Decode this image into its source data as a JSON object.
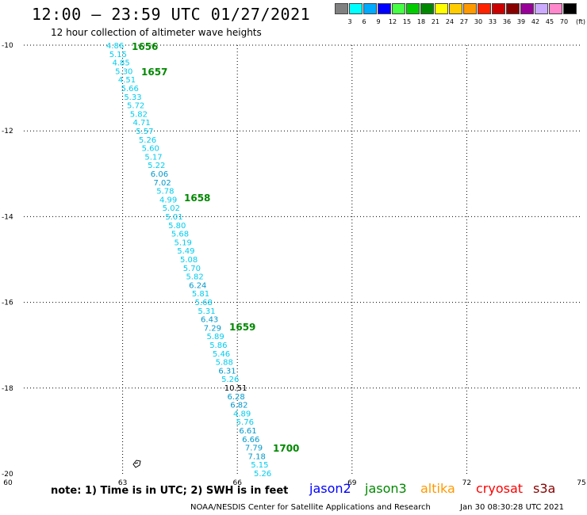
{
  "title": "12:00 – 23:59 UTC 01/27/2021",
  "subtitle": "12 hour collection of altimeter wave heights",
  "legend": {
    "unit": "(ft)",
    "items": [
      {
        "label": "3",
        "color": "#808080"
      },
      {
        "label": "6",
        "color": "#00ffff"
      },
      {
        "label": "9",
        "color": "#00aaff"
      },
      {
        "label": "12",
        "color": "#0000ff"
      },
      {
        "label": "15",
        "color": "#44ff44"
      },
      {
        "label": "18",
        "color": "#00cc00"
      },
      {
        "label": "21",
        "color": "#008800"
      },
      {
        "label": "24",
        "color": "#ffff00"
      },
      {
        "label": "27",
        "color": "#ffcc00"
      },
      {
        "label": "30",
        "color": "#ff9900"
      },
      {
        "label": "33",
        "color": "#ff2200"
      },
      {
        "label": "36",
        "color": "#cc0000"
      },
      {
        "label": "39",
        "color": "#880000"
      },
      {
        "label": "42",
        "color": "#990099"
      },
      {
        "label": "45",
        "color": "#ccaaff"
      },
      {
        "label": "70",
        "color": "#ff88cc"
      },
      {
        "label": "",
        "color": "#000000"
      }
    ]
  },
  "map": {
    "lon_range": [
      60,
      75
    ],
    "lat_range": [
      -20,
      -10
    ],
    "lon_ticks": [
      "60",
      "63",
      "66",
      "69",
      "72",
      "75"
    ],
    "lat_ticks": [
      "-10",
      "-12",
      "-14",
      "-16",
      "-18",
      "-20"
    ],
    "grid": true
  },
  "swh_labels": [
    "4.86",
    "5.15",
    "4.85",
    "5.30",
    "4.51",
    "5.66",
    "5.33",
    "5.72",
    "5.82",
    "4.71",
    "5.57",
    "5.26",
    "5.60",
    "5.17",
    "5.22",
    "6.06",
    "7.02",
    "5.78",
    "4.99",
    "5.02",
    "5.01",
    "5.80",
    "5.68",
    "5.19",
    "5.49",
    "5.08",
    "5.70",
    "5.82",
    "6.24",
    "5.81",
    "5.68",
    "5.31",
    "6.43",
    "7.29",
    "5.89",
    "5.86",
    "5.46",
    "5.88",
    "6.31",
    "5.26",
    "10.51",
    "6.28",
    "6.82",
    "4.89",
    "5.76",
    "6.61",
    "6.66",
    "7.79",
    "7.18",
    "5.15",
    "5.26"
  ],
  "time_labels": [
    "1656",
    "1657",
    "1658",
    "1659",
    "1700"
  ],
  "colors": {
    "swh_default": "#00ccee",
    "swh_dark": "#0099cc",
    "swh_black": "#000000",
    "time": "#008800",
    "jason2": "#0000ff",
    "jason3": "#008800",
    "altika": "#ff9900",
    "cryosat": "#ff0000",
    "s3a": "#880000"
  },
  "footer": {
    "note": "note:  1) Time is in UTC; 2) SWH is in feet",
    "satellites": [
      "jason2",
      "jason3",
      "altika",
      "cryosat",
      "s3a"
    ],
    "credit": "NOAA/NESDIS Center for Satellite Applications and Research",
    "timestamp": "Jan 30 08:30:28 UTC 2021"
  }
}
